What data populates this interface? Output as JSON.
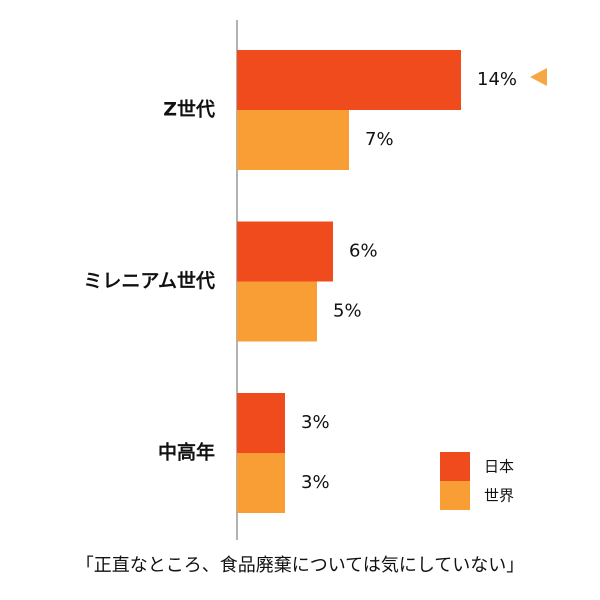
{
  "chart_data": {
    "type": "bar",
    "orientation": "horizontal",
    "caption": "「正直なところ、食品廃棄については気にしていない」",
    "categories": [
      "Z世代",
      "ミレニアム世代",
      "中高年"
    ],
    "series": [
      {
        "name": "日本",
        "color": "#ef4b1d",
        "values": [
          14,
          6,
          3
        ],
        "value_labels": [
          "14%",
          "6%",
          "3%"
        ]
      },
      {
        "name": "世界",
        "color": "#f99d35",
        "values": [
          7,
          5,
          3
        ],
        "value_labels": [
          "7%",
          "5%",
          "3%"
        ]
      }
    ]
  }
}
